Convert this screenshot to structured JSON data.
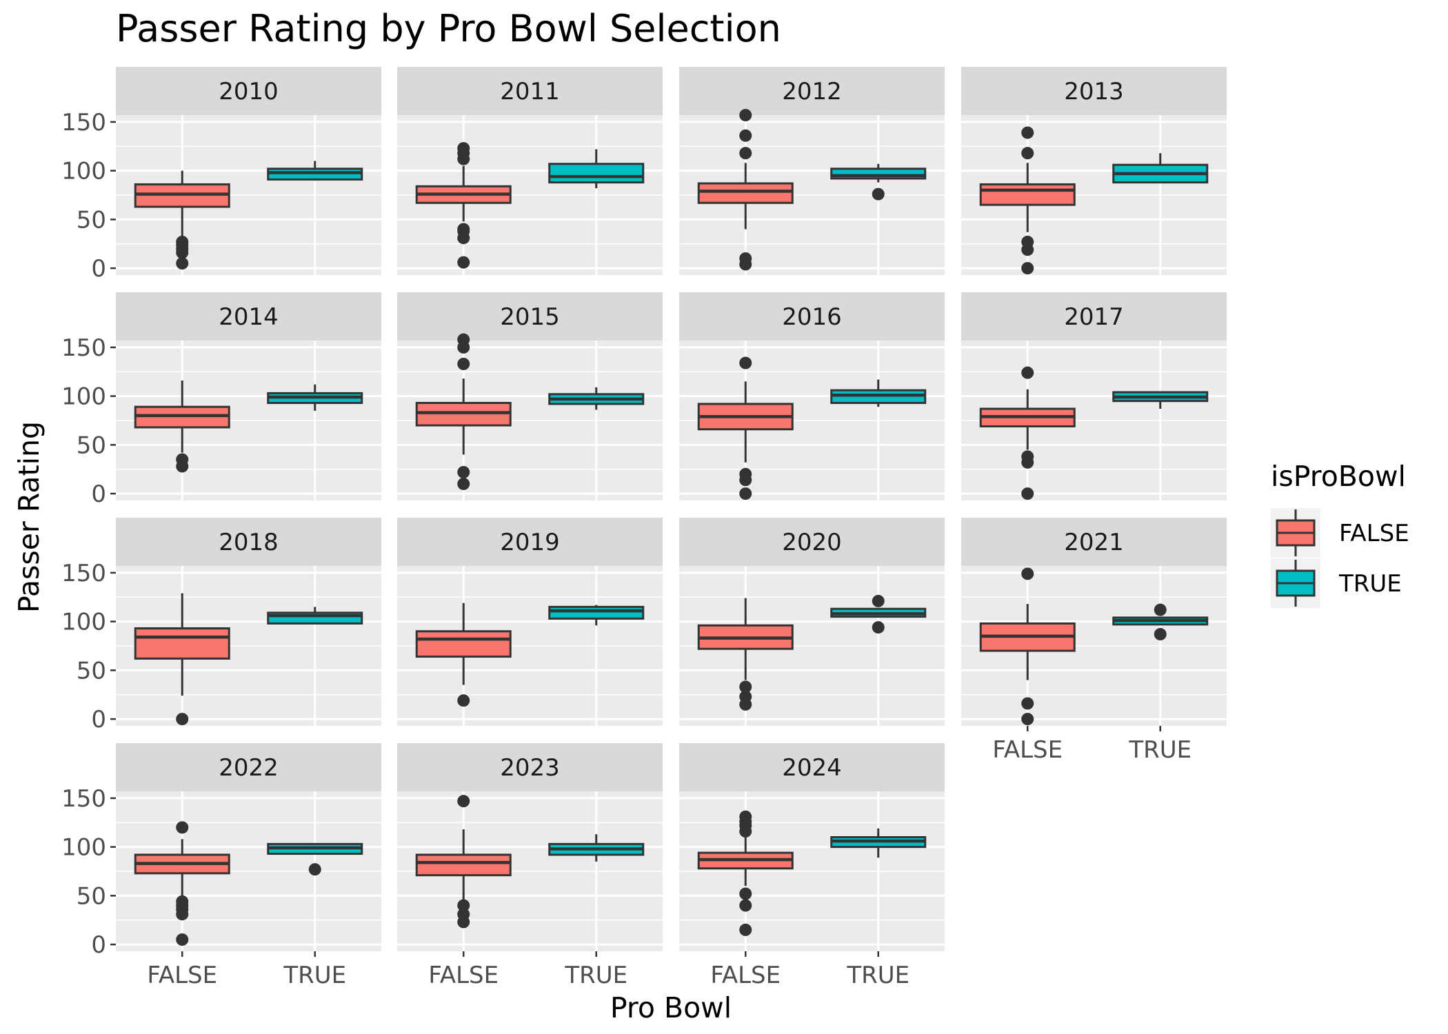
{
  "chart_data": {
    "type": "box",
    "title": "Passer Rating by Pro Bowl Selection",
    "xlabel": "Pro Bowl",
    "ylabel": "Passer Rating",
    "categories": [
      "FALSE",
      "TRUE"
    ],
    "yticks": [
      0,
      50,
      100,
      150
    ],
    "ylim": [
      -7,
      157
    ],
    "grid": true,
    "legend": {
      "title": "isProBowl",
      "position": "right",
      "items": [
        {
          "label": "FALSE",
          "color": "#F8766D"
        },
        {
          "label": "TRUE",
          "color": "#00BFC4"
        }
      ]
    },
    "facets": [
      {
        "label": "2010",
        "boxes": [
          {
            "category": "FALSE",
            "whisker_low": 33,
            "q1": 63,
            "median": 76,
            "q3": 86,
            "whisker_high": 100,
            "outliers": [
              5,
              16,
              20,
              24,
              27
            ]
          },
          {
            "category": "TRUE",
            "whisker_low": 90,
            "q1": 91,
            "median": 98,
            "q3": 102,
            "whisker_high": 110,
            "outliers": []
          }
        ]
      },
      {
        "label": "2011",
        "boxes": [
          {
            "category": "FALSE",
            "whisker_low": 48,
            "q1": 67,
            "median": 76,
            "q3": 84,
            "whisker_high": 105,
            "outliers": [
              6,
              31,
              38,
              40,
              112,
              118,
              123
            ]
          },
          {
            "category": "TRUE",
            "whisker_low": 82,
            "q1": 88,
            "median": 94,
            "q3": 107,
            "whisker_high": 122,
            "outliers": []
          }
        ]
      },
      {
        "label": "2012",
        "boxes": [
          {
            "category": "FALSE",
            "whisker_low": 40,
            "q1": 67,
            "median": 79,
            "q3": 87,
            "whisker_high": 108,
            "outliers": [
              4,
              10,
              118,
              136,
              157
            ]
          },
          {
            "category": "TRUE",
            "whisker_low": 88,
            "q1": 92,
            "median": 95,
            "q3": 102,
            "whisker_high": 107,
            "outliers": [
              76
            ]
          }
        ]
      },
      {
        "label": "2013",
        "boxes": [
          {
            "category": "FALSE",
            "whisker_low": 37,
            "q1": 65,
            "median": 80,
            "q3": 86,
            "whisker_high": 108,
            "outliers": [
              0,
              19,
              27,
              118,
              139
            ]
          },
          {
            "category": "TRUE",
            "whisker_low": 88,
            "q1": 88,
            "median": 97,
            "q3": 106,
            "whisker_high": 118,
            "outliers": []
          }
        ]
      },
      {
        "label": "2014",
        "boxes": [
          {
            "category": "FALSE",
            "whisker_low": 42,
            "q1": 68,
            "median": 80,
            "q3": 89,
            "whisker_high": 116,
            "outliers": [
              28,
              35
            ]
          },
          {
            "category": "TRUE",
            "whisker_low": 85,
            "q1": 93,
            "median": 99,
            "q3": 103,
            "whisker_high": 112,
            "outliers": []
          }
        ]
      },
      {
        "label": "2015",
        "boxes": [
          {
            "category": "FALSE",
            "whisker_low": 40,
            "q1": 70,
            "median": 83,
            "q3": 93,
            "whisker_high": 118,
            "outliers": [
              10,
              22,
              133,
              150,
              158
            ]
          },
          {
            "category": "TRUE",
            "whisker_low": 86,
            "q1": 92,
            "median": 97,
            "q3": 102,
            "whisker_high": 109,
            "outliers": []
          }
        ]
      },
      {
        "label": "2016",
        "boxes": [
          {
            "category": "FALSE",
            "whisker_low": 32,
            "q1": 66,
            "median": 79,
            "q3": 92,
            "whisker_high": 115,
            "outliers": [
              0,
              14,
              20,
              134
            ]
          },
          {
            "category": "TRUE",
            "whisker_low": 89,
            "q1": 93,
            "median": 101,
            "q3": 106,
            "whisker_high": 117,
            "outliers": []
          }
        ]
      },
      {
        "label": "2017",
        "boxes": [
          {
            "category": "FALSE",
            "whisker_low": 45,
            "q1": 69,
            "median": 79,
            "q3": 87,
            "whisker_high": 107,
            "outliers": [
              0,
              32,
              38,
              124
            ]
          },
          {
            "category": "TRUE",
            "whisker_low": 87,
            "q1": 95,
            "median": 99,
            "q3": 104,
            "whisker_high": 104,
            "outliers": []
          }
        ]
      },
      {
        "label": "2018",
        "boxes": [
          {
            "category": "FALSE",
            "whisker_low": 24,
            "q1": 62,
            "median": 84,
            "q3": 93,
            "whisker_high": 129,
            "outliers": [
              0
            ]
          },
          {
            "category": "TRUE",
            "whisker_low": 98,
            "q1": 98,
            "median": 106,
            "q3": 109,
            "whisker_high": 115,
            "outliers": []
          }
        ]
      },
      {
        "label": "2019",
        "boxes": [
          {
            "category": "FALSE",
            "whisker_low": 35,
            "q1": 64,
            "median": 82,
            "q3": 90,
            "whisker_high": 119,
            "outliers": [
              19
            ]
          },
          {
            "category": "TRUE",
            "whisker_low": 96,
            "q1": 103,
            "median": 111,
            "q3": 115,
            "whisker_high": 117,
            "outliers": []
          }
        ]
      },
      {
        "label": "2020",
        "boxes": [
          {
            "category": "FALSE",
            "whisker_low": 40,
            "q1": 72,
            "median": 83,
            "q3": 96,
            "whisker_high": 124,
            "outliers": [
              15,
              23,
              33
            ]
          },
          {
            "category": "TRUE",
            "whisker_low": 104,
            "q1": 105,
            "median": 108,
            "q3": 113,
            "whisker_high": 113,
            "outliers": [
              94,
              121
            ]
          }
        ]
      },
      {
        "label": "2021",
        "boxes": [
          {
            "category": "FALSE",
            "whisker_low": 40,
            "q1": 70,
            "median": 85,
            "q3": 98,
            "whisker_high": 118,
            "outliers": [
              0,
              16,
              149
            ]
          },
          {
            "category": "TRUE",
            "whisker_low": 97,
            "q1": 97,
            "median": 101,
            "q3": 104,
            "whisker_high": 104,
            "outliers": [
              87,
              112
            ]
          }
        ]
      },
      {
        "label": "2022",
        "boxes": [
          {
            "category": "FALSE",
            "whisker_low": 50,
            "q1": 73,
            "median": 83,
            "q3": 92,
            "whisker_high": 108,
            "outliers": [
              5,
              31,
              36,
              40,
              44,
              120
            ]
          },
          {
            "category": "TRUE",
            "whisker_low": 92,
            "q1": 93,
            "median": 99,
            "q3": 103,
            "whisker_high": 103,
            "outliers": [
              77
            ]
          }
        ]
      },
      {
        "label": "2023",
        "boxes": [
          {
            "category": "FALSE",
            "whisker_low": 45,
            "q1": 71,
            "median": 84,
            "q3": 92,
            "whisker_high": 118,
            "outliers": [
              23,
              31,
              40,
              147
            ]
          },
          {
            "category": "TRUE",
            "whisker_low": 85,
            "q1": 92,
            "median": 98,
            "q3": 103,
            "whisker_high": 113,
            "outliers": []
          }
        ]
      },
      {
        "label": "2024",
        "boxes": [
          {
            "category": "FALSE",
            "whisker_low": 60,
            "q1": 78,
            "median": 87,
            "q3": 94,
            "whisker_high": 110,
            "outliers": [
              15,
              40,
              52,
              116,
              122,
              126,
              131
            ]
          },
          {
            "category": "TRUE",
            "whisker_low": 89,
            "q1": 100,
            "median": 106,
            "q3": 110,
            "whisker_high": 119,
            "outliers": []
          }
        ]
      }
    ]
  }
}
